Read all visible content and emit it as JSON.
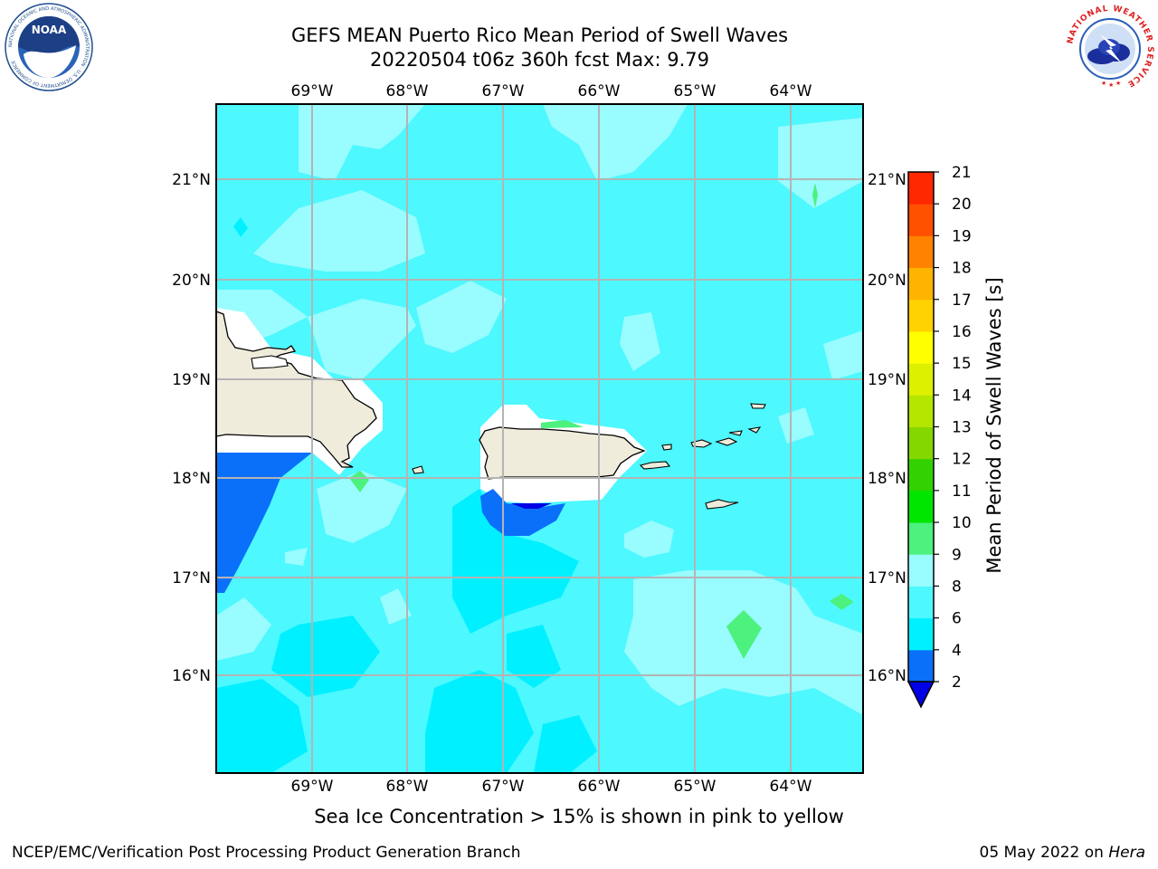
{
  "title": {
    "line1": "GEFS MEAN Puerto Rico Mean Period of Swell Waves",
    "line2": "20220504 t06z 360h fcst   Max: 9.79"
  },
  "map": {
    "lon_labels": [
      "69°W",
      "68°W",
      "67°W",
      "66°W",
      "65°W",
      "64°W"
    ],
    "lat_labels": [
      "21°N",
      "20°N",
      "19°N",
      "18°N",
      "17°N",
      "16°N"
    ]
  },
  "colorbar": {
    "label": "Mean Period of Swell Waves [s]",
    "ticks": [
      "2",
      "4",
      "6",
      "8",
      "9",
      "10",
      "11",
      "12",
      "13",
      "14",
      "15",
      "16",
      "17",
      "18",
      "19",
      "20",
      "21"
    ],
    "colors": [
      "#0000e6",
      "#0a70fa",
      "#00f0ff",
      "#4df8ff",
      "#99fcff",
      "#4cf17e",
      "#00e600",
      "#32d200",
      "#84d800",
      "#b4e600",
      "#dcf000",
      "#ffff00",
      "#ffd200",
      "#ffb400",
      "#ff8200",
      "#ff5000",
      "#ff2800",
      "#ff0000"
    ]
  },
  "note": "Sea Ice Concentration > 15% is shown in pink to yellow",
  "footer": {
    "left": "NCEP/EMC/Verification Post Processing Product Generation Branch",
    "date": "05 May 2022 on ",
    "host": "Hera"
  },
  "logos": {
    "noaa_text": "NOAA",
    "noaa_ring": "NATIONAL OCEANIC AND ATMOSPHERIC ADMINISTRATION · U.S. DEPARTMENT OF COMMERCE",
    "nws_ring": "NATIONAL WEATHER SERVICE"
  }
}
